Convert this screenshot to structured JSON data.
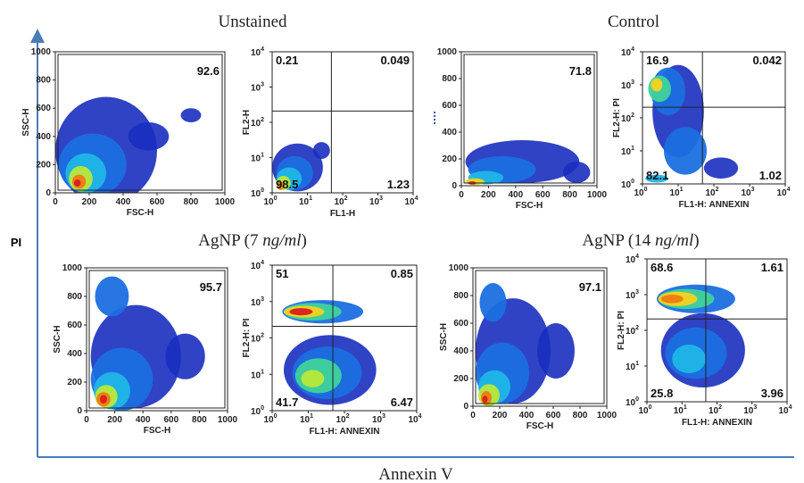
{
  "figure": {
    "y_label": "PI",
    "x_label": "Annexin V",
    "axis_color": "#4a7db8"
  },
  "chart_data": [
    {
      "type": "scatter",
      "panel": "Unstained",
      "plot": "FSC/SSC",
      "title": "Unstained",
      "xlabel": "FSC-H",
      "ylabel": "SSC-H",
      "xlim": [
        0,
        1000
      ],
      "ylim": [
        0,
        1000
      ],
      "x_ticks": [
        "0",
        "200",
        "400",
        "600",
        "800",
        "1000"
      ],
      "y_ticks": [
        "0",
        "200",
        "400",
        "600",
        "800",
        "1000"
      ],
      "gate_percent": "92.6"
    },
    {
      "type": "scatter",
      "panel": "Unstained",
      "plot": "quadrant",
      "xlabel": "FL1-H",
      "ylabel": "FL2-H",
      "scale": "log",
      "xlim": [
        1,
        10000
      ],
      "ylim": [
        1,
        10000
      ],
      "quadrants": {
        "upper_left": "0.21",
        "upper_right": "0.049",
        "lower_left": "98.5",
        "lower_right": "1.23"
      }
    },
    {
      "type": "scatter",
      "panel": "Control",
      "plot": "FSC/SSC",
      "title": "Control",
      "xlabel": "FSC-H",
      "ylabel": "",
      "xlim": [
        0,
        1000
      ],
      "ylim": [
        0,
        1000
      ],
      "x_ticks": [
        "0",
        "200",
        "400",
        "600",
        "800",
        "1000"
      ],
      "y_ticks": [
        "0",
        "200",
        "400",
        "600",
        "800",
        "1000"
      ],
      "gate_percent": "71.8"
    },
    {
      "type": "scatter",
      "panel": "Control",
      "plot": "quadrant",
      "xlabel": "FL1-H: ANNEXIN",
      "ylabel": "FL2-H: PI",
      "scale": "log",
      "xlim": [
        1,
        10000
      ],
      "ylim": [
        1,
        10000
      ],
      "quadrants": {
        "upper_left": "16.9",
        "upper_right": "0.042",
        "lower_left": "82.1",
        "lower_right": "1.02"
      }
    },
    {
      "type": "scatter",
      "panel": "AgNP (7 ng/ml)",
      "plot": "FSC/SSC",
      "title": "AgNP (7 ng/ml)",
      "xlabel": "FSC-H",
      "ylabel": "SSC-H",
      "xlim": [
        0,
        1000
      ],
      "ylim": [
        0,
        1000
      ],
      "x_ticks": [
        "0",
        "200",
        "400",
        "600",
        "800",
        "1000"
      ],
      "y_ticks": [
        "0",
        "200",
        "400",
        "600",
        "800",
        "1000"
      ],
      "gate_percent": "95.7"
    },
    {
      "type": "scatter",
      "panel": "AgNP (7 ng/ml)",
      "plot": "quadrant",
      "xlabel": "FL1-H: ANNEXIN",
      "ylabel": "FL2-H: PI",
      "scale": "log",
      "xlim": [
        1,
        10000
      ],
      "ylim": [
        1,
        10000
      ],
      "quadrants": {
        "upper_left": "51",
        "upper_right": "0.85",
        "lower_left": "41.7",
        "lower_right": "6.47"
      }
    },
    {
      "type": "scatter",
      "panel": "AgNP (14 ng/ml)",
      "plot": "FSC/SSC",
      "title": "AgNP (14 ng/ml)",
      "xlabel": "FSC-H",
      "ylabel": "SSC-H",
      "xlim": [
        0,
        1000
      ],
      "ylim": [
        0,
        1000
      ],
      "x_ticks": [
        "0",
        "200",
        "400",
        "600",
        "800",
        "1000"
      ],
      "y_ticks": [
        "0",
        "200",
        "400",
        "600",
        "800",
        "1000"
      ],
      "gate_percent": "97.1"
    },
    {
      "type": "scatter",
      "panel": "AgNP (14 ng/ml)",
      "plot": "quadrant",
      "xlabel": "FL1-H: ANNEXIN",
      "ylabel": "FL2-H: PI",
      "scale": "log",
      "xlim": [
        1,
        10000
      ],
      "ylim": [
        1,
        10000
      ],
      "quadrants": {
        "upper_left": "68.6",
        "upper_right": "1.61",
        "lower_left": "25.8",
        "lower_right": "3.96"
      }
    }
  ],
  "titles": {
    "unstained": "Unstained",
    "control": "Control",
    "agnp7_prefix": "AgNP (7 ",
    "agnp7_unit": "ng/ml",
    "agnp7_suffix": ")",
    "agnp14_prefix": "AgNP (14 ",
    "agnp14_unit": "ng/ml",
    "agnp14_suffix": ")"
  },
  "log_ticks": {
    "base": "10",
    "exponents": [
      "0",
      "1",
      "2",
      "3",
      "4"
    ]
  },
  "density_colors": [
    "#1a2fbf",
    "#1b6fe0",
    "#20b6e6",
    "#3fd39a",
    "#b8e83a",
    "#f5d21e",
    "#f07a12",
    "#d81e1e"
  ]
}
